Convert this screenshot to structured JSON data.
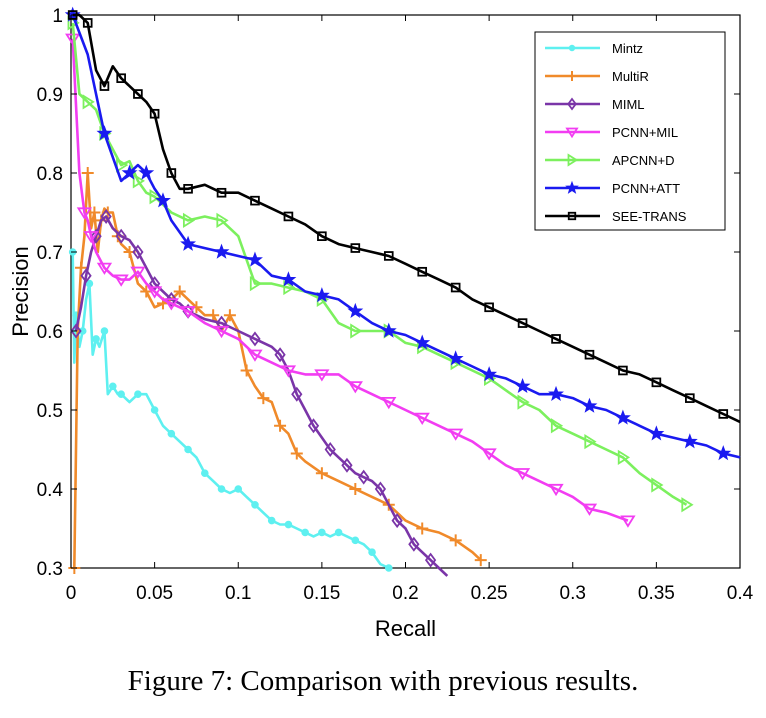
{
  "caption": "Figure 7: Comparison with previous results.",
  "chart_data": {
    "type": "line",
    "xlabel": "Recall",
    "ylabel": "Precision",
    "xlim": [
      0,
      0.4
    ],
    "ylim": [
      0.3,
      1.0
    ],
    "xticks": [
      "0",
      "0.05",
      "0.1",
      "0.15",
      "0.2",
      "0.25",
      "0.3",
      "0.35",
      "0.4"
    ],
    "yticks": [
      "0.3",
      "0.4",
      "0.5",
      "0.6",
      "0.7",
      "0.8",
      "0.9",
      "1"
    ],
    "grid": false,
    "legend_position": "top-right",
    "series": [
      {
        "name": "Mintz",
        "color": "#5ef0f0",
        "marker": "circle",
        "x": [
          0.001,
          0.002,
          0.003,
          0.005,
          0.007,
          0.009,
          0.011,
          0.013,
          0.015,
          0.017,
          0.02,
          0.022,
          0.025,
          0.028,
          0.03,
          0.035,
          0.04,
          0.045,
          0.05,
          0.055,
          0.06,
          0.065,
          0.07,
          0.075,
          0.08,
          0.085,
          0.09,
          0.095,
          0.1,
          0.105,
          0.11,
          0.115,
          0.12,
          0.125,
          0.13,
          0.135,
          0.14,
          0.145,
          0.15,
          0.155,
          0.16,
          0.165,
          0.17,
          0.175,
          0.18,
          0.185,
          0.19
        ],
        "y": [
          0.7,
          0.56,
          0.62,
          0.58,
          0.6,
          0.64,
          0.66,
          0.57,
          0.59,
          0.58,
          0.6,
          0.52,
          0.53,
          0.52,
          0.52,
          0.51,
          0.52,
          0.52,
          0.5,
          0.48,
          0.47,
          0.46,
          0.45,
          0.44,
          0.42,
          0.41,
          0.4,
          0.395,
          0.4,
          0.39,
          0.38,
          0.37,
          0.36,
          0.355,
          0.355,
          0.35,
          0.345,
          0.34,
          0.345,
          0.34,
          0.345,
          0.34,
          0.335,
          0.33,
          0.32,
          0.305,
          0.3
        ]
      },
      {
        "name": "MultiR",
        "color": "#f08a2a",
        "marker": "plus",
        "x": [
          0.002,
          0.004,
          0.006,
          0.008,
          0.01,
          0.012,
          0.014,
          0.016,
          0.018,
          0.02,
          0.022,
          0.025,
          0.028,
          0.03,
          0.035,
          0.04,
          0.045,
          0.05,
          0.055,
          0.06,
          0.065,
          0.07,
          0.075,
          0.08,
          0.085,
          0.09,
          0.095,
          0.1,
          0.105,
          0.11,
          0.115,
          0.12,
          0.125,
          0.13,
          0.135,
          0.14,
          0.15,
          0.16,
          0.17,
          0.18,
          0.19,
          0.2,
          0.21,
          0.22,
          0.23,
          0.24,
          0.245
        ],
        "y": [
          0.3,
          0.6,
          0.68,
          0.72,
          0.8,
          0.73,
          0.75,
          0.7,
          0.74,
          0.755,
          0.75,
          0.75,
          0.72,
          0.71,
          0.7,
          0.66,
          0.65,
          0.63,
          0.635,
          0.64,
          0.65,
          0.64,
          0.63,
          0.62,
          0.62,
          0.6,
          0.62,
          0.6,
          0.55,
          0.53,
          0.515,
          0.51,
          0.48,
          0.47,
          0.445,
          0.435,
          0.42,
          0.41,
          0.4,
          0.39,
          0.38,
          0.36,
          0.35,
          0.345,
          0.335,
          0.32,
          0.31
        ]
      },
      {
        "name": "MIML",
        "color": "#7a35a8",
        "marker": "diamond",
        "x": [
          0.003,
          0.006,
          0.009,
          0.012,
          0.015,
          0.018,
          0.021,
          0.025,
          0.03,
          0.035,
          0.04,
          0.045,
          0.05,
          0.055,
          0.06,
          0.065,
          0.07,
          0.08,
          0.09,
          0.1,
          0.11,
          0.12,
          0.125,
          0.13,
          0.135,
          0.14,
          0.145,
          0.15,
          0.155,
          0.16,
          0.165,
          0.17,
          0.175,
          0.18,
          0.185,
          0.19,
          0.195,
          0.2,
          0.205,
          0.21,
          0.215,
          0.22,
          0.225
        ],
        "y": [
          0.6,
          0.63,
          0.67,
          0.7,
          0.72,
          0.74,
          0.745,
          0.73,
          0.72,
          0.715,
          0.7,
          0.68,
          0.66,
          0.65,
          0.64,
          0.635,
          0.625,
          0.615,
          0.61,
          0.6,
          0.59,
          0.58,
          0.57,
          0.55,
          0.52,
          0.5,
          0.48,
          0.465,
          0.45,
          0.44,
          0.43,
          0.42,
          0.415,
          0.41,
          0.4,
          0.38,
          0.36,
          0.35,
          0.33,
          0.32,
          0.31,
          0.3,
          0.29
        ]
      },
      {
        "name": "PCNN+MIL",
        "color": "#f23df2",
        "marker": "triangle-down",
        "x": [
          0.001,
          0.005,
          0.008,
          0.01,
          0.012,
          0.015,
          0.02,
          0.025,
          0.03,
          0.035,
          0.04,
          0.045,
          0.05,
          0.055,
          0.06,
          0.065,
          0.07,
          0.08,
          0.09,
          0.1,
          0.11,
          0.12,
          0.13,
          0.14,
          0.15,
          0.16,
          0.17,
          0.18,
          0.19,
          0.2,
          0.21,
          0.22,
          0.23,
          0.24,
          0.25,
          0.26,
          0.27,
          0.28,
          0.29,
          0.3,
          0.31,
          0.32,
          0.333
        ],
        "y": [
          0.97,
          0.8,
          0.75,
          0.74,
          0.72,
          0.7,
          0.68,
          0.67,
          0.665,
          0.665,
          0.675,
          0.66,
          0.65,
          0.64,
          0.635,
          0.63,
          0.625,
          0.61,
          0.6,
          0.59,
          0.57,
          0.56,
          0.55,
          0.545,
          0.545,
          0.545,
          0.53,
          0.52,
          0.51,
          0.5,
          0.49,
          0.48,
          0.47,
          0.46,
          0.445,
          0.43,
          0.42,
          0.41,
          0.4,
          0.39,
          0.375,
          0.37,
          0.36
        ]
      },
      {
        "name": "APCNN+D",
        "color": "#7cf05e",
        "marker": "triangle-right",
        "x": [
          0.001,
          0.005,
          0.01,
          0.015,
          0.02,
          0.025,
          0.03,
          0.035,
          0.04,
          0.045,
          0.05,
          0.06,
          0.07,
          0.08,
          0.09,
          0.1,
          0.11,
          0.12,
          0.13,
          0.14,
          0.15,
          0.16,
          0.17,
          0.18,
          0.19,
          0.2,
          0.21,
          0.22,
          0.23,
          0.24,
          0.25,
          0.26,
          0.27,
          0.28,
          0.29,
          0.3,
          0.31,
          0.32,
          0.33,
          0.34,
          0.35,
          0.36,
          0.368
        ],
        "y": [
          0.99,
          0.9,
          0.89,
          0.88,
          0.85,
          0.83,
          0.81,
          0.815,
          0.79,
          0.775,
          0.77,
          0.75,
          0.74,
          0.745,
          0.74,
          0.72,
          0.66,
          0.66,
          0.655,
          0.65,
          0.64,
          0.61,
          0.6,
          0.6,
          0.6,
          0.585,
          0.58,
          0.57,
          0.56,
          0.55,
          0.54,
          0.525,
          0.51,
          0.5,
          0.48,
          0.47,
          0.46,
          0.45,
          0.44,
          0.42,
          0.405,
          0.39,
          0.38
        ]
      },
      {
        "name": "PCNN+ATT",
        "color": "#1a1af0",
        "marker": "star",
        "x": [
          0.001,
          0.01,
          0.02,
          0.03,
          0.035,
          0.04,
          0.045,
          0.05,
          0.055,
          0.06,
          0.07,
          0.08,
          0.09,
          0.1,
          0.11,
          0.12,
          0.13,
          0.14,
          0.15,
          0.16,
          0.17,
          0.18,
          0.19,
          0.2,
          0.21,
          0.22,
          0.23,
          0.24,
          0.25,
          0.26,
          0.27,
          0.28,
          0.29,
          0.3,
          0.31,
          0.32,
          0.33,
          0.34,
          0.35,
          0.36,
          0.37,
          0.38,
          0.39,
          0.4
        ],
        "y": [
          1.0,
          0.95,
          0.85,
          0.79,
          0.8,
          0.81,
          0.8,
          0.78,
          0.765,
          0.74,
          0.71,
          0.705,
          0.7,
          0.695,
          0.69,
          0.67,
          0.665,
          0.65,
          0.645,
          0.64,
          0.625,
          0.61,
          0.6,
          0.595,
          0.585,
          0.575,
          0.565,
          0.555,
          0.545,
          0.54,
          0.53,
          0.52,
          0.52,
          0.515,
          0.505,
          0.5,
          0.49,
          0.48,
          0.47,
          0.465,
          0.46,
          0.455,
          0.445,
          0.44
        ]
      },
      {
        "name": "SEE-TRANS",
        "color": "#000000",
        "marker": "square",
        "x": [
          0.001,
          0.005,
          0.01,
          0.015,
          0.02,
          0.025,
          0.03,
          0.035,
          0.04,
          0.045,
          0.05,
          0.055,
          0.06,
          0.065,
          0.07,
          0.08,
          0.09,
          0.1,
          0.11,
          0.12,
          0.13,
          0.14,
          0.15,
          0.16,
          0.17,
          0.18,
          0.19,
          0.2,
          0.21,
          0.22,
          0.23,
          0.24,
          0.25,
          0.26,
          0.27,
          0.28,
          0.29,
          0.3,
          0.31,
          0.32,
          0.33,
          0.34,
          0.35,
          0.36,
          0.37,
          0.38,
          0.39,
          0.4
        ],
        "y": [
          1.0,
          1.0,
          0.99,
          0.93,
          0.91,
          0.935,
          0.92,
          0.91,
          0.9,
          0.89,
          0.875,
          0.83,
          0.8,
          0.78,
          0.78,
          0.785,
          0.775,
          0.775,
          0.765,
          0.755,
          0.745,
          0.735,
          0.72,
          0.71,
          0.705,
          0.7,
          0.695,
          0.685,
          0.675,
          0.665,
          0.655,
          0.64,
          0.63,
          0.62,
          0.61,
          0.6,
          0.59,
          0.58,
          0.57,
          0.56,
          0.55,
          0.545,
          0.535,
          0.525,
          0.515,
          0.505,
          0.495,
          0.485
        ]
      }
    ]
  }
}
